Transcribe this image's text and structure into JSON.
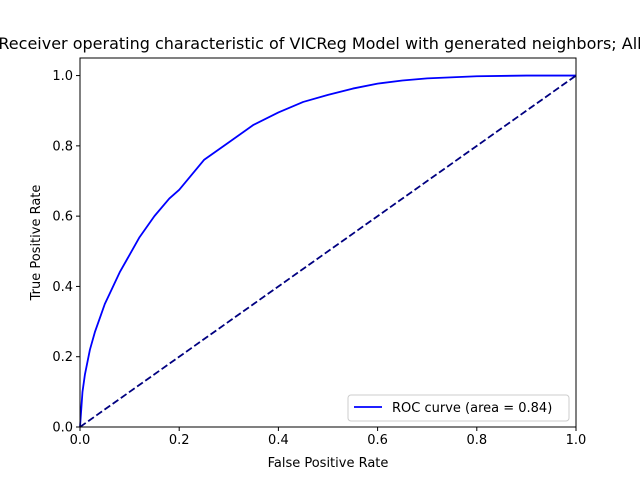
{
  "chart_data": {
    "type": "line",
    "title": "Receiver operating characteristic of VICReg Model with generated neighbors; All",
    "xlabel": "False Positive Rate",
    "ylabel": "True Positive Rate",
    "xlim": [
      0.0,
      1.0
    ],
    "ylim": [
      0.0,
      1.05
    ],
    "grid": false,
    "legend_position": "lower right",
    "xticks": [
      0.0,
      0.2,
      0.4,
      0.6,
      0.8,
      1.0
    ],
    "yticks": [
      0.0,
      0.2,
      0.4,
      0.6,
      0.8,
      1.0
    ],
    "xtick_labels": [
      "0.0",
      "0.2",
      "0.4",
      "0.6",
      "0.8",
      "1.0"
    ],
    "ytick_labels": [
      "0.0",
      "0.2",
      "0.4",
      "0.6",
      "0.8",
      "1.0"
    ],
    "series": [
      {
        "name": "ROC curve (area = 0.84)",
        "color": "#0000ff",
        "style": "solid",
        "x": [
          0.0,
          0.005,
          0.01,
          0.02,
          0.03,
          0.04,
          0.05,
          0.06,
          0.08,
          0.1,
          0.12,
          0.15,
          0.18,
          0.2,
          0.25,
          0.3,
          0.35,
          0.4,
          0.45,
          0.5,
          0.55,
          0.6,
          0.65,
          0.7,
          0.8,
          0.9,
          1.0
        ],
        "y": [
          0.0,
          0.1,
          0.15,
          0.22,
          0.27,
          0.31,
          0.35,
          0.38,
          0.44,
          0.49,
          0.54,
          0.6,
          0.65,
          0.675,
          0.76,
          0.81,
          0.86,
          0.895,
          0.925,
          0.945,
          0.963,
          0.977,
          0.986,
          0.992,
          0.998,
          1.0,
          1.0
        ]
      },
      {
        "color": "#000080",
        "style": "dashed",
        "x": [
          0.0,
          1.0
        ],
        "y": [
          0.0,
          1.0
        ]
      }
    ]
  }
}
